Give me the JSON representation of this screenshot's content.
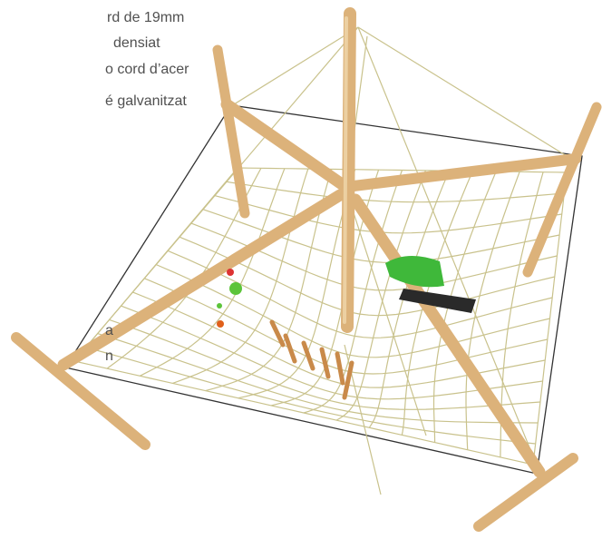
{
  "caption": {
    "lines": [
      "rd de 19mm",
      "densiat",
      "o cord d’acer",
      "é galvanitzat"
    ]
  },
  "side_caption": {
    "lines": [
      "a",
      "n"
    ]
  }
}
